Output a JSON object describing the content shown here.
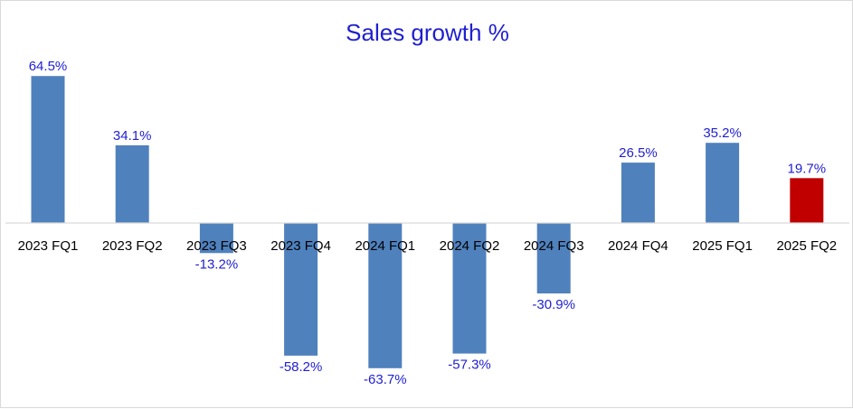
{
  "chart_data": {
    "type": "bar",
    "title": "Sales growth %",
    "xlabel": "",
    "ylabel": "",
    "categories": [
      "2023 FQ1",
      "2023 FQ2",
      "2023 FQ3",
      "2023 FQ4",
      "2024 FQ1",
      "2024 FQ2",
      "2024 FQ3",
      "2024 FQ4",
      "2025 FQ1",
      "2025 FQ2"
    ],
    "values": [
      64.5,
      34.1,
      -13.2,
      -58.2,
      -63.7,
      -57.3,
      -30.9,
      26.5,
      35.2,
      19.7
    ],
    "data_labels": [
      "64.5%",
      "34.1%",
      "-13.2%",
      "-58.2%",
      "-63.7%",
      "-57.3%",
      "-30.9%",
      "26.5%",
      "35.2%",
      "19.7%"
    ],
    "bar_colors": [
      "#4f81bd",
      "#4f81bd",
      "#4f81bd",
      "#4f81bd",
      "#4f81bd",
      "#4f81bd",
      "#4f81bd",
      "#4f81bd",
      "#4f81bd",
      "#c00000"
    ],
    "label_color": "#1f1fd1",
    "title_color": "#1f1fd1",
    "axis_color": "#d9d9d9",
    "grid": false,
    "legend": "none"
  }
}
